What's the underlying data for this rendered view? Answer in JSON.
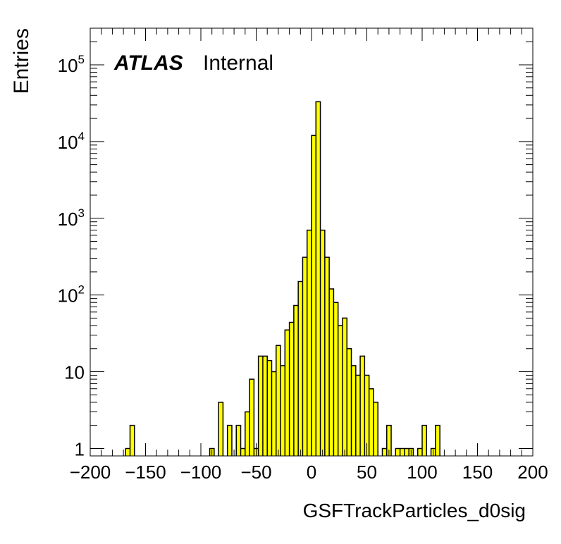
{
  "chart_data": {
    "type": "bar",
    "xlabel": "GSFTrackParticles_d0sig",
    "ylabel": "Entries",
    "xlim": [
      -200,
      200
    ],
    "ylim": [
      0.8,
      300000
    ],
    "yscale": "log",
    "bin_width": 4,
    "fill_color": "#ffff00",
    "line_color": "#000000",
    "annotation": {
      "atlas": "ATLAS",
      "label": "Internal"
    },
    "x_ticks": [
      {
        "value": -200,
        "label": "−200"
      },
      {
        "value": -150,
        "label": "−150"
      },
      {
        "value": -100,
        "label": "−100"
      },
      {
        "value": -50,
        "label": "−50"
      },
      {
        "value": 0,
        "label": "0"
      },
      {
        "value": 50,
        "label": "50"
      },
      {
        "value": 100,
        "label": "100"
      },
      {
        "value": 150,
        "label": "150"
      },
      {
        "value": 200,
        "label": "200"
      }
    ],
    "y_ticks": [
      {
        "value": 1,
        "base": "1",
        "exp": ""
      },
      {
        "value": 10,
        "base": "10",
        "exp": ""
      },
      {
        "value": 100,
        "base": "10",
        "exp": "2"
      },
      {
        "value": 1000,
        "base": "10",
        "exp": "3"
      },
      {
        "value": 10000,
        "base": "10",
        "exp": "4"
      },
      {
        "value": 100000,
        "base": "10",
        "exp": "5"
      }
    ],
    "bins": [
      {
        "x": -168,
        "y": 1
      },
      {
        "x": -164,
        "y": 2
      },
      {
        "x": -92,
        "y": 1
      },
      {
        "x": -84,
        "y": 4
      },
      {
        "x": -76,
        "y": 2
      },
      {
        "x": -68,
        "y": 2
      },
      {
        "x": -64,
        "y": 1
      },
      {
        "x": -60,
        "y": 3
      },
      {
        "x": -56,
        "y": 8
      },
      {
        "x": -52,
        "y": 1
      },
      {
        "x": -48,
        "y": 16
      },
      {
        "x": -44,
        "y": 16
      },
      {
        "x": -40,
        "y": 14
      },
      {
        "x": -36,
        "y": 10
      },
      {
        "x": -32,
        "y": 22
      },
      {
        "x": -28,
        "y": 12
      },
      {
        "x": -24,
        "y": 35
      },
      {
        "x": -20,
        "y": 44
      },
      {
        "x": -16,
        "y": 73
      },
      {
        "x": -12,
        "y": 150
      },
      {
        "x": -8,
        "y": 310
      },
      {
        "x": -4,
        "y": 700
      },
      {
        "x": 0,
        "y": 12000
      },
      {
        "x": 4,
        "y": 33000
      },
      {
        "x": 8,
        "y": 700
      },
      {
        "x": 12,
        "y": 310
      },
      {
        "x": 16,
        "y": 120
      },
      {
        "x": 20,
        "y": 80
      },
      {
        "x": 24,
        "y": 40
      },
      {
        "x": 28,
        "y": 50
      },
      {
        "x": 32,
        "y": 20
      },
      {
        "x": 36,
        "y": 12
      },
      {
        "x": 40,
        "y": 9
      },
      {
        "x": 44,
        "y": 16
      },
      {
        "x": 48,
        "y": 9
      },
      {
        "x": 52,
        "y": 6
      },
      {
        "x": 56,
        "y": 4
      },
      {
        "x": 64,
        "y": 1
      },
      {
        "x": 68,
        "y": 2
      },
      {
        "x": 76,
        "y": 1
      },
      {
        "x": 80,
        "y": 1
      },
      {
        "x": 84,
        "y": 1
      },
      {
        "x": 88,
        "y": 1
      },
      {
        "x": 96,
        "y": 1
      },
      {
        "x": 100,
        "y": 2
      },
      {
        "x": 108,
        "y": 1
      },
      {
        "x": 112,
        "y": 2
      }
    ]
  }
}
